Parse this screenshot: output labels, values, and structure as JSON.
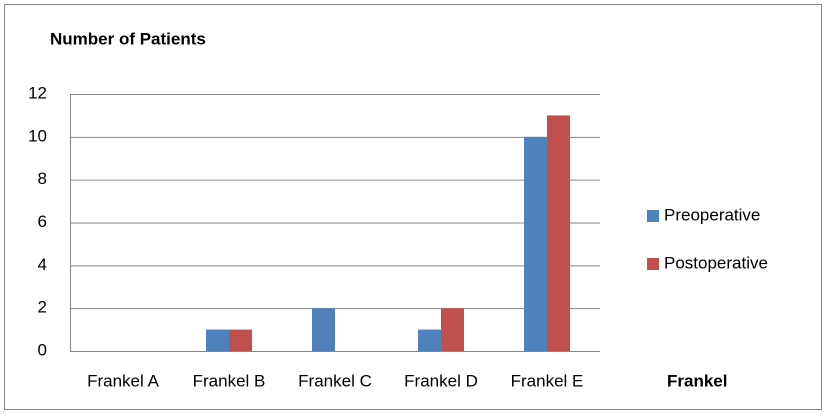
{
  "chart_data": {
    "type": "bar",
    "y_axis_label": "Number of Patients",
    "x_axis_label": "Frankel",
    "categories": [
      "Frankel A",
      "Frankel B",
      "Frankel C",
      "Frankel D",
      "Frankel E"
    ],
    "series": [
      {
        "name": "Preoperative",
        "color": "#4f81bd",
        "values": [
          0,
          1,
          2,
          1,
          10
        ]
      },
      {
        "name": "Postoperative",
        "color": "#c0504d",
        "values": [
          0,
          1,
          0,
          2,
          11
        ]
      }
    ],
    "ylim": [
      0,
      12
    ],
    "yticks": [
      0,
      2,
      4,
      6,
      8,
      10,
      12
    ],
    "grid": true,
    "legend": "right"
  }
}
